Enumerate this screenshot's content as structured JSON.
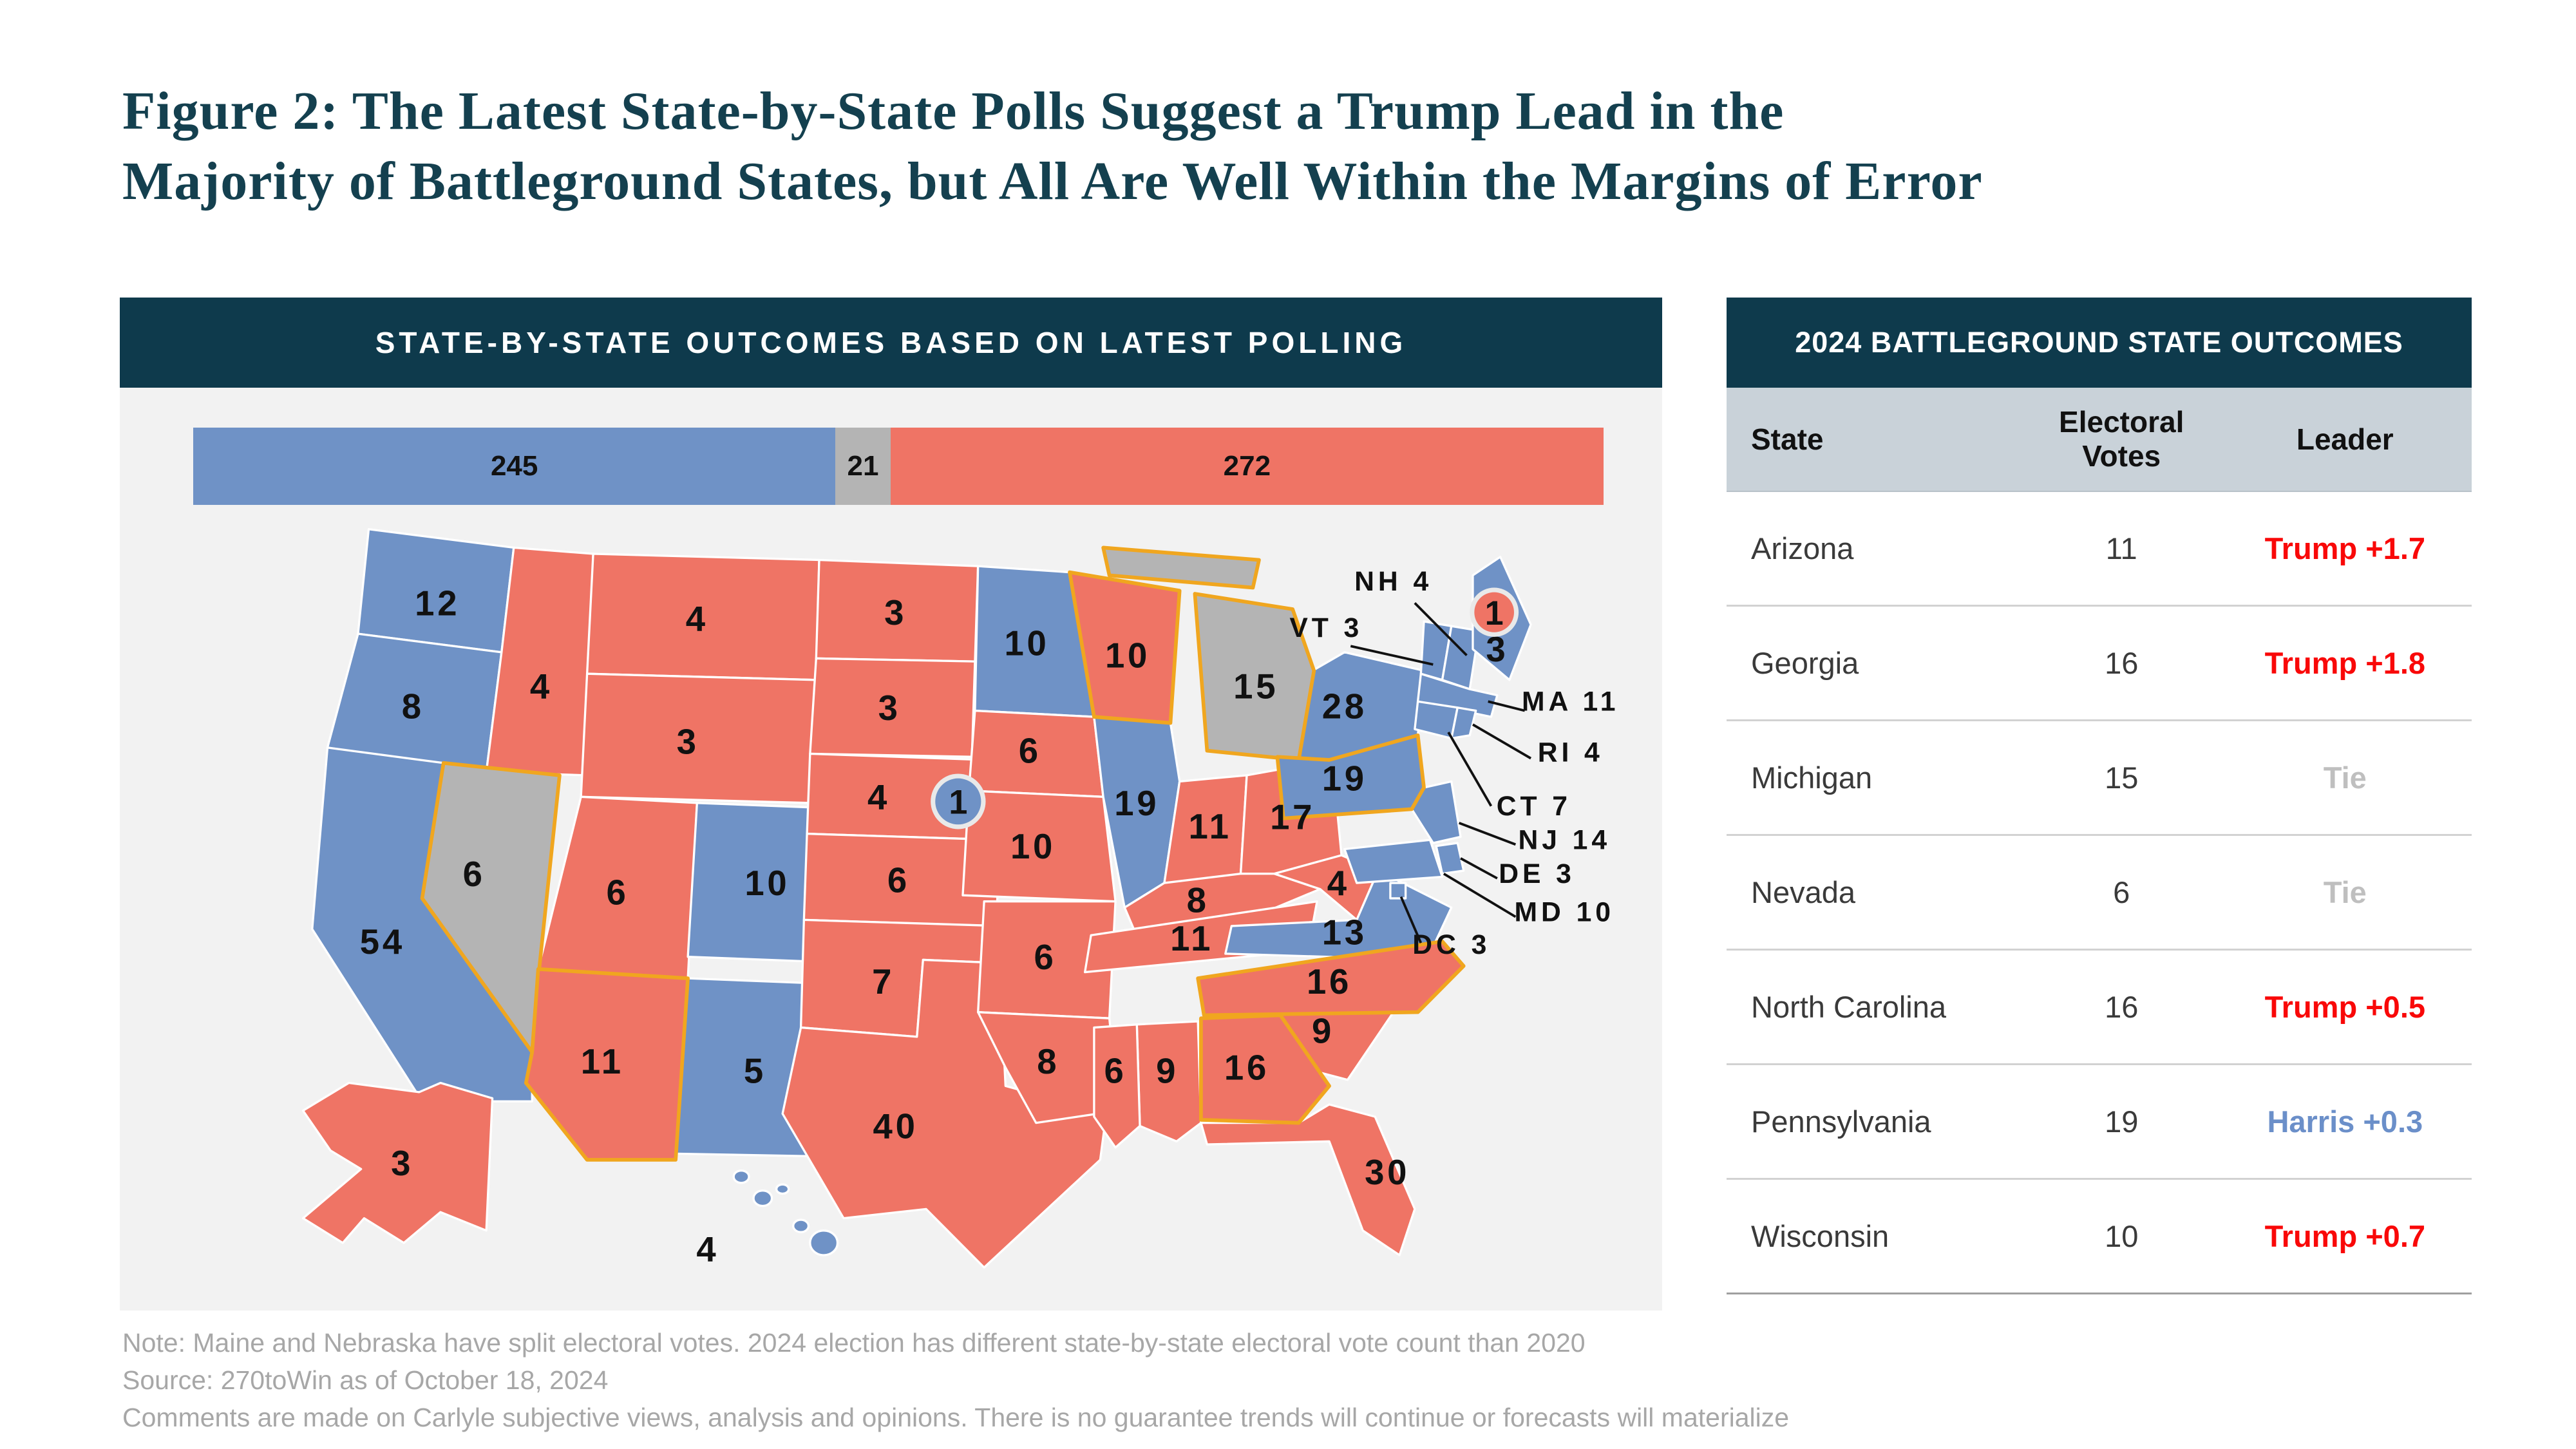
{
  "title": {
    "line1": "Figure 2: The Latest State-by-State Polls Suggest a Trump Lead in the",
    "line2": "Majority of Battleground States, but All Are Well Within the Margins of Error"
  },
  "map_panel": {
    "header": "STATE-BY-STATE OUTCOMES BASED ON LATEST POLLING",
    "ev_bar": {
      "harris": "245",
      "tossup": "21",
      "trump": "272",
      "total": 538
    }
  },
  "table": {
    "header": "2024 BATTLEGROUND STATE OUTCOMES",
    "columns": [
      "State",
      "Electoral Votes",
      "Leader"
    ],
    "rows": [
      {
        "state": "Arizona",
        "ev": "11",
        "leader": "Trump +1.7",
        "tone": "trump"
      },
      {
        "state": "Georgia",
        "ev": "16",
        "leader": "Trump +1.8",
        "tone": "trump"
      },
      {
        "state": "Michigan",
        "ev": "15",
        "leader": "Tie",
        "tone": "tie"
      },
      {
        "state": "Nevada",
        "ev": "6",
        "leader": "Tie",
        "tone": "tie"
      },
      {
        "state": "North Carolina",
        "ev": "16",
        "leader": "Trump +0.5",
        "tone": "trump"
      },
      {
        "state": "Pennsylvania",
        "ev": "19",
        "leader": "Harris +0.3",
        "tone": "harris"
      },
      {
        "state": "Wisconsin",
        "ev": "10",
        "leader": "Trump +0.7",
        "tone": "trump"
      }
    ]
  },
  "notes": [
    "Note: Maine and Nebraska have split electoral votes. 2024 election has different state-by-state electoral vote count than 2020",
    "Source: 270toWin as of October 18, 2024",
    "Comments are made on Carlyle subjective views, analysis and opinions. There is no guarantee trends will continue or forecasts will materialize"
  ],
  "colors": {
    "harris": "#6f92c6",
    "trump": "#ef7465",
    "tossup": "#b4b4b4",
    "navy": "#0e3a4c",
    "battleground_outline": "#f0a61f",
    "trump_text": "#f90808",
    "harris_text": "#6b8fc9",
    "tie_text": "#bfbfbf"
  },
  "chart_data": [
    {
      "type": "heatmap",
      "title": "STATE-BY-STATE OUTCOMES BASED ON LATEST POLLING",
      "subtitle": "US electoral-college choropleth; blue = Harris, red = Trump, gray = toss-up; gold outline = battleground",
      "totals": {
        "harris": 245,
        "tossup": 21,
        "trump": 272
      },
      "states": [
        {
          "abbr": "WA",
          "ev": 12,
          "result": "harris"
        },
        {
          "abbr": "OR",
          "ev": 8,
          "result": "harris"
        },
        {
          "abbr": "CA",
          "ev": 54,
          "result": "harris"
        },
        {
          "abbr": "NV",
          "ev": 6,
          "result": "tossup",
          "battleground": true
        },
        {
          "abbr": "ID",
          "ev": 4,
          "result": "trump"
        },
        {
          "abbr": "MT",
          "ev": 4,
          "result": "trump"
        },
        {
          "abbr": "WY",
          "ev": 3,
          "result": "trump"
        },
        {
          "abbr": "UT",
          "ev": 6,
          "result": "trump"
        },
        {
          "abbr": "CO",
          "ev": 10,
          "result": "harris"
        },
        {
          "abbr": "AZ",
          "ev": 11,
          "result": "trump",
          "battleground": true
        },
        {
          "abbr": "NM",
          "ev": 5,
          "result": "harris"
        },
        {
          "abbr": "ND",
          "ev": 3,
          "result": "trump"
        },
        {
          "abbr": "SD",
          "ev": 3,
          "result": "trump"
        },
        {
          "abbr": "NE",
          "ev": 4,
          "result": "trump"
        },
        {
          "abbr": "KS",
          "ev": 6,
          "result": "trump"
        },
        {
          "abbr": "OK",
          "ev": 7,
          "result": "trump"
        },
        {
          "abbr": "TX",
          "ev": 40,
          "result": "trump"
        },
        {
          "abbr": "MN",
          "ev": 10,
          "result": "harris"
        },
        {
          "abbr": "IA",
          "ev": 6,
          "result": "trump"
        },
        {
          "abbr": "MO",
          "ev": 10,
          "result": "trump"
        },
        {
          "abbr": "AR",
          "ev": 6,
          "result": "trump"
        },
        {
          "abbr": "LA",
          "ev": 8,
          "result": "trump"
        },
        {
          "abbr": "WI",
          "ev": 10,
          "result": "trump",
          "battleground": true
        },
        {
          "abbr": "MI",
          "ev": 15,
          "result": "tossup",
          "battleground": true
        },
        {
          "abbr": "IL",
          "ev": 19,
          "result": "harris"
        },
        {
          "abbr": "IN",
          "ev": 11,
          "result": "trump"
        },
        {
          "abbr": "OH",
          "ev": 17,
          "result": "trump"
        },
        {
          "abbr": "KY",
          "ev": 8,
          "result": "trump"
        },
        {
          "abbr": "TN",
          "ev": 11,
          "result": "trump"
        },
        {
          "abbr": "WV",
          "ev": 4,
          "result": "trump"
        },
        {
          "abbr": "VA",
          "ev": 13,
          "result": "harris"
        },
        {
          "abbr": "NC",
          "ev": 16,
          "result": "trump",
          "battleground": true
        },
        {
          "abbr": "SC",
          "ev": 9,
          "result": "trump"
        },
        {
          "abbr": "GA",
          "ev": 16,
          "result": "trump",
          "battleground": true
        },
        {
          "abbr": "AL",
          "ev": 9,
          "result": "trump"
        },
        {
          "abbr": "MS",
          "ev": 6,
          "result": "trump"
        },
        {
          "abbr": "FL",
          "ev": 30,
          "result": "trump"
        },
        {
          "abbr": "NY",
          "ev": 28,
          "result": "harris"
        },
        {
          "abbr": "PA",
          "ev": 19,
          "result": "harris",
          "battleground": true
        },
        {
          "abbr": "VT",
          "ev": 3,
          "result": "harris",
          "callout": true
        },
        {
          "abbr": "NH",
          "ev": 4,
          "result": "harris",
          "callout": true
        },
        {
          "abbr": "ME",
          "ev": 3,
          "result": "harris"
        },
        {
          "abbr": "MA",
          "ev": 11,
          "result": "harris",
          "callout": true
        },
        {
          "abbr": "CT",
          "ev": 7,
          "result": "harris",
          "callout": true
        },
        {
          "abbr": "RI",
          "ev": 4,
          "result": "harris",
          "callout": true
        },
        {
          "abbr": "NJ",
          "ev": 14,
          "result": "harris",
          "callout": true
        },
        {
          "abbr": "DE",
          "ev": 3,
          "result": "harris",
          "callout": true
        },
        {
          "abbr": "MD",
          "ev": 10,
          "result": "harris",
          "callout": true
        },
        {
          "abbr": "DC",
          "ev": 3,
          "result": "harris",
          "callout": true
        },
        {
          "abbr": "AK",
          "ev": 3,
          "result": "trump"
        },
        {
          "abbr": "HI",
          "ev": 4,
          "result": "harris"
        }
      ],
      "districts": [
        {
          "id": "ME-2",
          "ev": 1,
          "result": "trump",
          "label": "1"
        },
        {
          "id": "NE-2",
          "ev": 1,
          "result": "harris",
          "label": "1"
        }
      ]
    },
    {
      "type": "table",
      "title": "2024 BATTLEGROUND STATE OUTCOMES",
      "columns": [
        "State",
        "Electoral Votes",
        "Leader"
      ],
      "rows": [
        [
          "Arizona",
          11,
          "Trump +1.7"
        ],
        [
          "Georgia",
          16,
          "Trump +1.8"
        ],
        [
          "Michigan",
          15,
          "Tie"
        ],
        [
          "Nevada",
          6,
          "Tie"
        ],
        [
          "North Carolina",
          16,
          "Trump +0.5"
        ],
        [
          "Pennsylvania",
          19,
          "Harris +0.3"
        ],
        [
          "Wisconsin",
          10,
          "Trump +0.7"
        ]
      ]
    }
  ]
}
